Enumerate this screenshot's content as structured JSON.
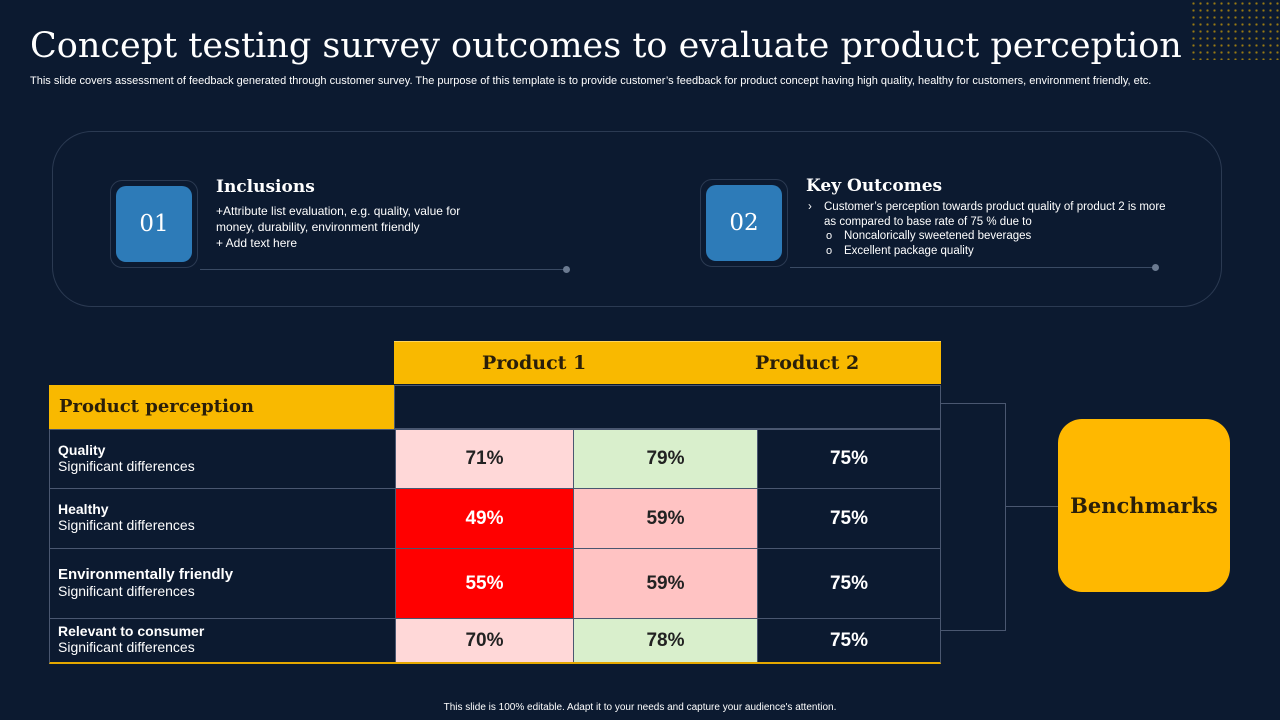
{
  "title": "Concept testing survey outcomes to evaluate product perception",
  "subtitle": "This slide covers assessment of feedback generated through customer survey. The purpose of this template is to provide customer’s feedback for product concept having high quality, healthy for customers, environment friendly, etc.",
  "inclusions": {
    "number": "01",
    "heading": "Inclusions",
    "lines": [
      "+Attribute list evaluation,  e.g. quality, value  for",
      "money,  durability,  environment  friendly",
      "+ Add text here"
    ]
  },
  "key_outcomes": {
    "number": "02",
    "heading": "Key Outcomes",
    "point": "Customer’s perception towards product quality of product 2 is more as compared to base rate of 75 % due to",
    "subpoints": [
      "Noncalorically sweetened beverages",
      "Excellent package quality"
    ]
  },
  "table": {
    "col_product1": "Product 1",
    "col_product2": "Product 2",
    "row_header": "Product perception",
    "rows": [
      {
        "name": "Quality",
        "desc": "Significant differences",
        "p1": "71%",
        "p2": "79%",
        "bench": "75%"
      },
      {
        "name": "Healthy",
        "desc": "Significant differences",
        "p1": "49%",
        "p2": "59%",
        "bench": "75%"
      },
      {
        "name": "Environmentally friendly",
        "desc": "Significant differences",
        "p1": "55%",
        "p2": "59%",
        "bench": "75%"
      },
      {
        "name": "Relevant to consumer",
        "desc": "Significant differences",
        "p1": "70%",
        "p2": "78%",
        "bench": "75%"
      }
    ]
  },
  "benchmarks_label": "Benchmarks",
  "footer": "This slide is 100% editable.  Adapt it to your needs and capture your audience's attention.",
  "colors": {
    "background": "#0c1a30",
    "accent_yellow": "#f9b900",
    "badge_blue": "#2d7bb8",
    "cell_red": "#ff0000",
    "cell_pink": "#ffd8d8",
    "cell_green": "#d9efcc"
  }
}
